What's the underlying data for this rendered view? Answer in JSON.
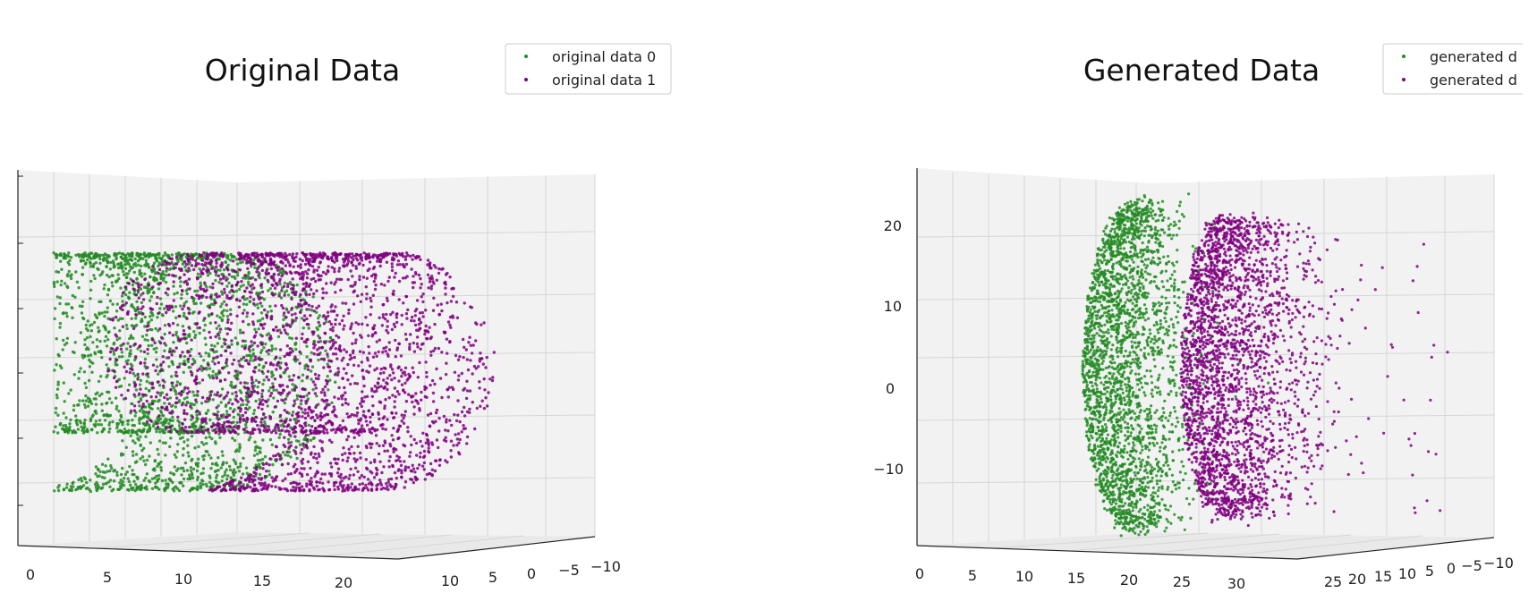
{
  "chart_data": [
    {
      "type": "scatter",
      "projection": "3d",
      "title": "Original Data",
      "legend_position": "top-right",
      "grid": true,
      "x_ticks": [
        "0",
        "5",
        "10",
        "15",
        "20"
      ],
      "y_ticks": [
        "10",
        "5",
        "0",
        "−5",
        "−10"
      ],
      "z_ticks": [
        "",
        "",
        "",
        "",
        "",
        ""
      ],
      "series": [
        {
          "name": "original data 0",
          "color": "#228b22",
          "shape": "swiss-roll",
          "x_range": [
            0,
            12
          ]
        },
        {
          "name": "original data 1",
          "color": "#800080",
          "shape": "swiss-roll",
          "x_range": [
            10,
            22
          ]
        }
      ]
    },
    {
      "type": "scatter",
      "projection": "3d",
      "title": "Generated Data",
      "legend_position": "top-right",
      "grid": true,
      "x_ticks": [
        "0",
        "5",
        "10",
        "15",
        "20",
        "25",
        "30"
      ],
      "y_ticks": [
        "25",
        "20",
        "15",
        "10",
        "5",
        "0",
        "−5",
        "−10"
      ],
      "z_ticks": [
        "20",
        "10",
        "0",
        "−10"
      ],
      "series": [
        {
          "name": "generated d",
          "color": "#228b22",
          "shape": "crescent-cloud"
        },
        {
          "name": "generated d",
          "color": "#800080",
          "shape": "crescent-cloud"
        }
      ]
    }
  ]
}
